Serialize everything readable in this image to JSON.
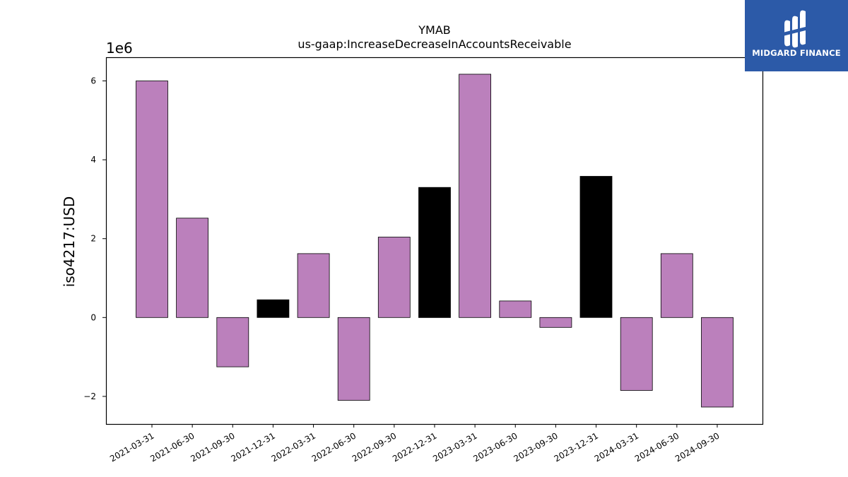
{
  "logo": {
    "text": "MIDGARD FINANCE",
    "background": "#2c5aa8"
  },
  "chart_data": {
    "type": "bar",
    "title": "YMAB",
    "subtitle": "us-gaap:IncreaseDecreaseInAccountsReceivable",
    "ylabel": "iso4217:USD",
    "xlabel": "",
    "y_multiplier_label": "1e6",
    "ylim": [
      -2.7,
      6.6
    ],
    "yticks": [
      -2,
      0,
      2,
      4,
      6
    ],
    "ytick_labels": [
      "−2",
      "0",
      "2",
      "4",
      "6"
    ],
    "categories": [
      "2021-03-31",
      "2021-06-30",
      "2021-09-30",
      "2021-12-31",
      "2022-03-31",
      "2022-06-30",
      "2022-09-30",
      "2022-12-31",
      "2023-03-31",
      "2023-06-30",
      "2023-09-30",
      "2023-12-31",
      "2024-03-31",
      "2024-06-30",
      "2024-09-30"
    ],
    "values": [
      6.0,
      2.52,
      -1.25,
      0.45,
      1.62,
      -2.1,
      2.04,
      3.3,
      6.17,
      0.42,
      -0.25,
      3.58,
      -1.85,
      1.62,
      -2.27
    ],
    "bar_colors": [
      "#bb80bc",
      "#bb80bc",
      "#bb80bc",
      "#000000",
      "#bb80bc",
      "#bb80bc",
      "#bb80bc",
      "#000000",
      "#bb80bc",
      "#bb80bc",
      "#bb80bc",
      "#000000",
      "#bb80bc",
      "#bb80bc",
      "#bb80bc"
    ],
    "grid": false
  }
}
